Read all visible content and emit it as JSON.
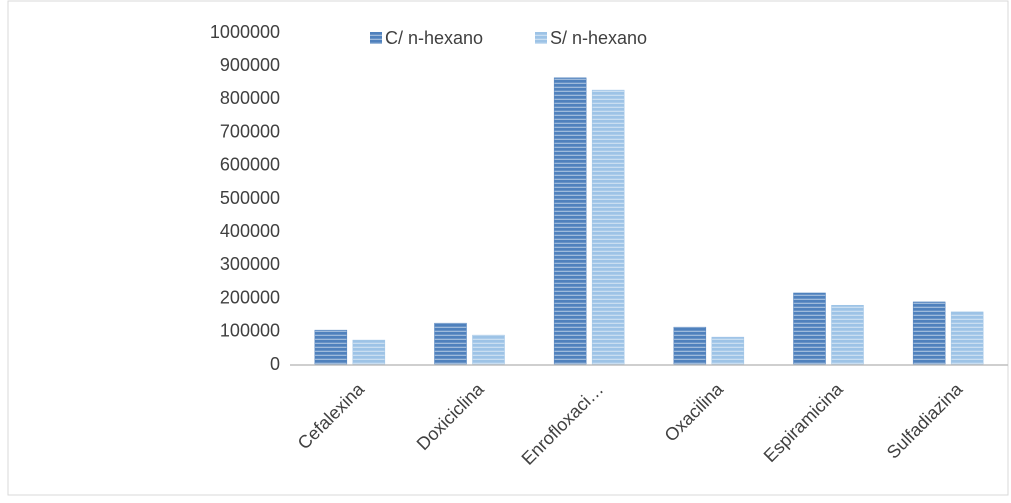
{
  "chart_data": {
    "type": "bar",
    "categories": [
      "Cefalexina",
      "Doxiciclina",
      "Enrofloxaci…",
      "Oxacilina",
      "Espiramicina",
      "Sulfadiazina"
    ],
    "series": [
      {
        "name": "C/ n-hexano",
        "color": "#4f81bd",
        "values": [
          105000,
          126000,
          865000,
          114000,
          217000,
          190000
        ]
      },
      {
        "name": "S/ n-hexano",
        "color": "#9dc3e6",
        "values": [
          75000,
          90000,
          828000,
          84000,
          180000,
          160000
        ]
      }
    ],
    "ylim": [
      0,
      1000000
    ],
    "yticks": [
      0,
      100000,
      200000,
      300000,
      400000,
      500000,
      600000,
      700000,
      800000,
      900000,
      1000000
    ],
    "grid": false
  }
}
